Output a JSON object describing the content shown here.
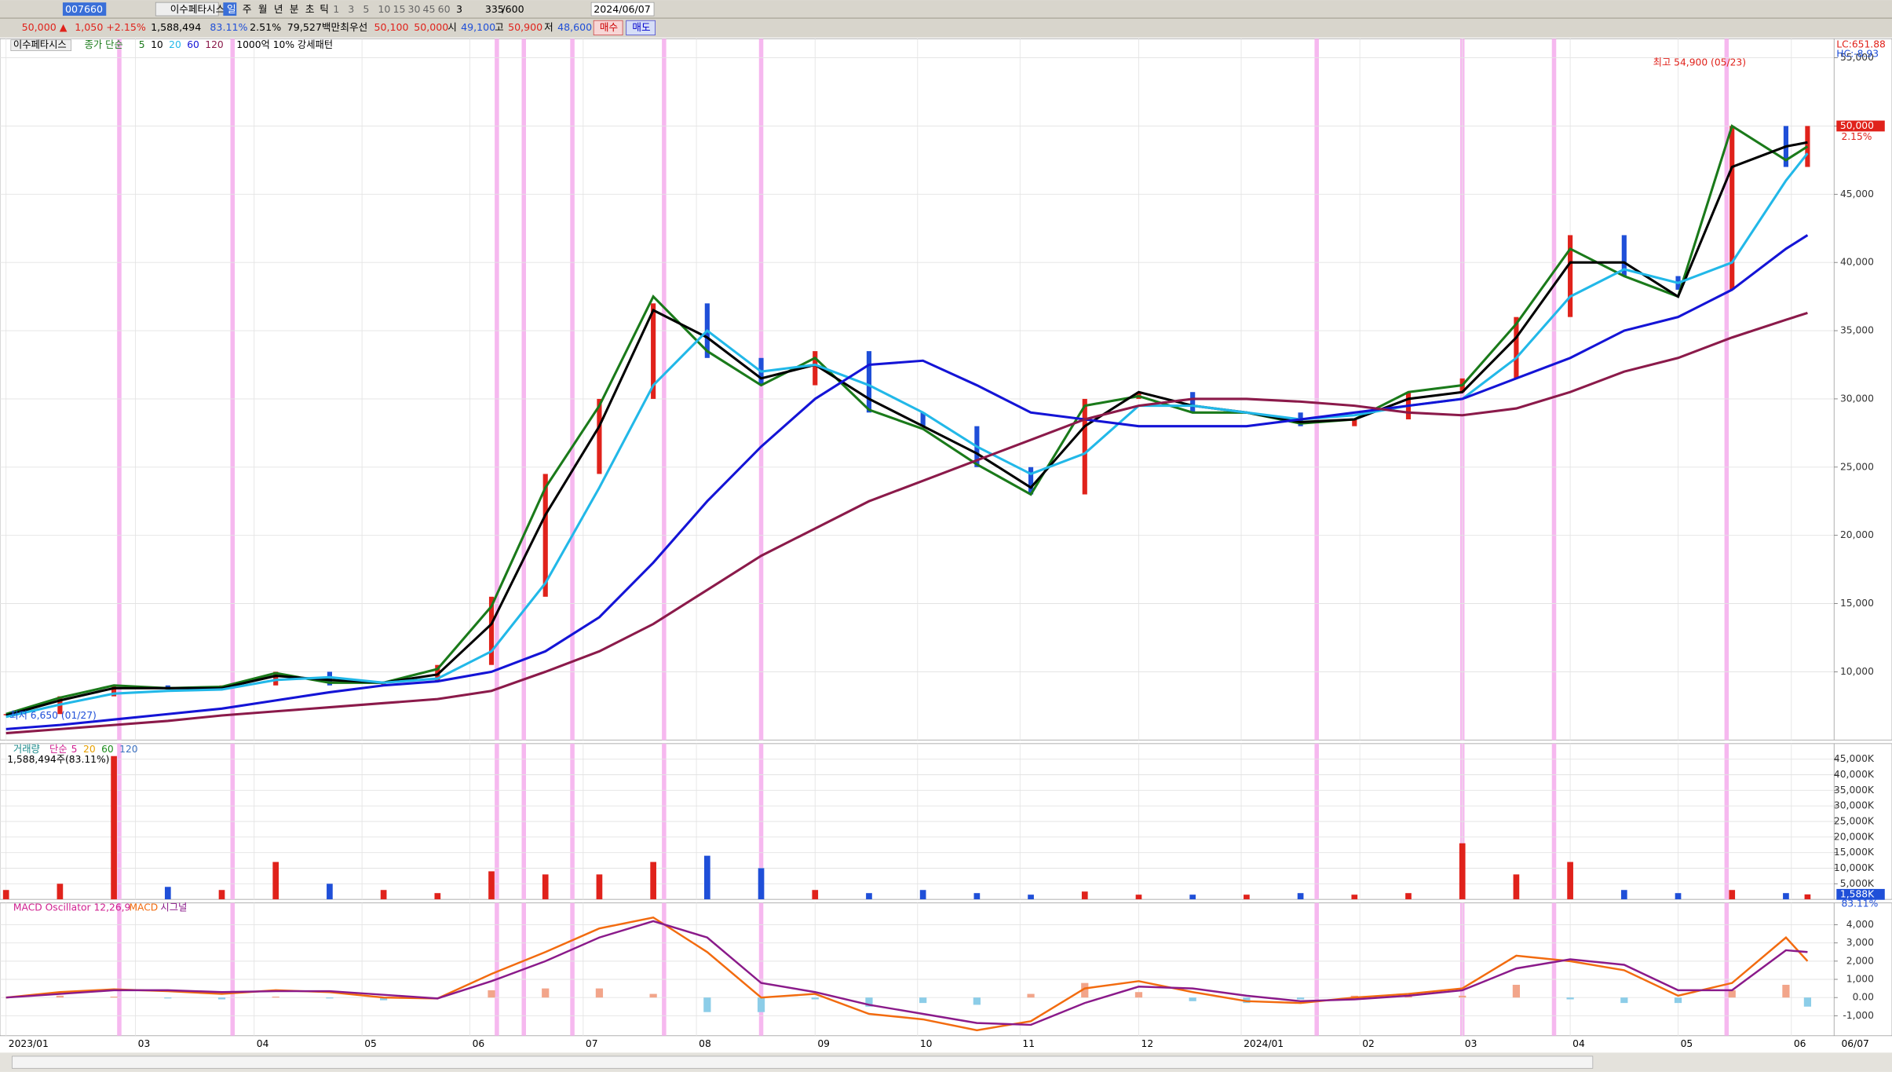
{
  "toolbar": {
    "code": "007660",
    "name": "이수페타시스",
    "periods": [
      "일",
      "주",
      "월",
      "년",
      "분",
      "초",
      "틱"
    ],
    "intervals": [
      "1",
      "3",
      "5",
      "10",
      "15",
      "30",
      "45",
      "60"
    ],
    "count": "3",
    "bars": "335",
    "max_bars": "/600",
    "date": "2024/06/07"
  },
  "quote": {
    "price": "50,000 ▲",
    "change": "1,050",
    "change_pct": "+2.15%",
    "volume": "1,588,494",
    "volume_ratio": "83.11%",
    "turnover": "2.51%",
    "amount": "79,527백만",
    "best_label": "최우선",
    "ask": "50,100",
    "bid": "50,000",
    "open_label": "시",
    "open": "49,100",
    "high_label": "고",
    "high": "50,900",
    "low_label": "저",
    "low": "48,600",
    "buy": "매수",
    "sell": "매도"
  },
  "chart_data": [
    {
      "type": "price",
      "title": "이수페타시스",
      "legend_prefix": "종가 단순",
      "pattern_label": "1000억 10% 강세패턴",
      "high_label": "최고 54,900 (05/23)",
      "low_label": "최저 6,650 (01/27)",
      "lc_label": "LC:651.88",
      "hc_label": "HC:-8.93",
      "last_label": "50,000",
      "last_pct": "2.15%",
      "end_date": "06/07",
      "x": [
        0,
        10,
        20,
        30,
        40,
        50,
        60,
        70,
        80,
        90,
        100,
        110,
        120,
        130,
        140,
        150,
        160,
        170,
        180,
        190,
        200,
        210,
        220,
        230,
        240,
        250,
        260,
        270,
        280,
        290,
        300,
        310,
        320,
        330,
        334
      ],
      "xlim": [
        0,
        334
      ],
      "xticks": [
        {
          "value": 0,
          "label": "2023/01"
        },
        {
          "value": 24,
          "label": "03"
        },
        {
          "value": 46,
          "label": "04"
        },
        {
          "value": 66,
          "label": "05"
        },
        {
          "value": 86,
          "label": "06"
        },
        {
          "value": 107,
          "label": "07"
        },
        {
          "value": 128,
          "label": "08"
        },
        {
          "value": 150,
          "label": "09"
        },
        {
          "value": 169,
          "label": "10"
        },
        {
          "value": 188,
          "label": "11"
        },
        {
          "value": 210,
          "label": "12"
        },
        {
          "value": 229,
          "label": "2024/01"
        },
        {
          "value": 251,
          "label": "02"
        },
        {
          "value": 270,
          "label": "03"
        },
        {
          "value": 290,
          "label": "04"
        },
        {
          "value": 310,
          "label": "05"
        },
        {
          "value": 331,
          "label": "06"
        }
      ],
      "highlights": [
        21,
        42,
        91,
        96,
        105,
        122,
        140,
        243,
        270,
        287,
        319
      ],
      "up_color": "#e0221b",
      "down_color": "#1f4fd8",
      "values": [
        6900,
        8200,
        9000,
        8700,
        9000,
        10000,
        9000,
        9300,
        10500,
        15500,
        24500,
        30000,
        37000,
        33000,
        31000,
        33500,
        29000,
        28000,
        25000,
        23000,
        30000,
        30500,
        29000,
        29000,
        28000,
        28500,
        30500,
        31500,
        36000,
        42000,
        39000,
        38000,
        50000,
        47000,
        50000
      ],
      "series": [
        {
          "name": "5",
          "color": "#1a7a1a",
          "values": [
            6900,
            8100,
            9000,
            8800,
            8900,
            9900,
            9200,
            9200,
            10200,
            14800,
            23500,
            29500,
            37500,
            33500,
            31000,
            33000,
            29200,
            27800,
            25200,
            23000,
            29500,
            30200,
            29000,
            29000,
            28200,
            28500,
            30500,
            31000,
            35500,
            41000,
            39000,
            37500,
            50000,
            47500,
            48500
          ]
        },
        {
          "name": "10",
          "color": "#000000",
          "values": [
            6800,
            7900,
            8800,
            8800,
            8800,
            9700,
            9400,
            9200,
            9800,
            13500,
            21500,
            28000,
            36500,
            34500,
            31500,
            32500,
            30000,
            28000,
            26000,
            23500,
            28000,
            30500,
            29500,
            29000,
            28300,
            28500,
            30000,
            30500,
            34500,
            40000,
            40000,
            37500,
            47000,
            48500,
            48800
          ]
        },
        {
          "name": "20",
          "color": "#22b8e8",
          "values": [
            6700,
            7600,
            8400,
            8600,
            8700,
            9400,
            9600,
            9200,
            9500,
            11500,
            16500,
            23500,
            31000,
            35000,
            32000,
            32500,
            31000,
            29000,
            26500,
            24500,
            26000,
            29500,
            29500,
            29000,
            28500,
            28800,
            29500,
            30000,
            33000,
            37500,
            39500,
            38500,
            40000,
            46000,
            48000
          ]
        },
        {
          "name": "60",
          "color": "#1414d6",
          "values": [
            5800,
            6100,
            6500,
            6900,
            7300,
            7900,
            8500,
            9000,
            9300,
            10000,
            11500,
            14000,
            18000,
            22500,
            26500,
            30000,
            32500,
            32800,
            31000,
            29000,
            28500,
            28000,
            28000,
            28000,
            28500,
            29000,
            29500,
            30000,
            31500,
            33000,
            35000,
            36000,
            38000,
            41000,
            42000
          ]
        },
        {
          "name": "120",
          "color": "#8b1a4a",
          "values": [
            5500,
            5800,
            6100,
            6400,
            6800,
            7100,
            7400,
            7700,
            8000,
            8600,
            10000,
            11500,
            13500,
            16000,
            18500,
            20500,
            22500,
            24000,
            25500,
            27000,
            28500,
            29500,
            30000,
            30000,
            29800,
            29500,
            29000,
            28800,
            29300,
            30500,
            32000,
            33000,
            34500,
            35800,
            36300
          ]
        }
      ],
      "ylim": [
        5000,
        56400
      ],
      "yticks": [
        {
          "value": 10000,
          "label": "10,000"
        },
        {
          "value": 15000,
          "label": "15,000"
        },
        {
          "value": 20000,
          "label": "20,000"
        },
        {
          "value": 25000,
          "label": "25,000"
        },
        {
          "value": 30000,
          "label": "30,000"
        },
        {
          "value": 35000,
          "label": "35,000"
        },
        {
          "value": 40000,
          "label": "40,000"
        },
        {
          "value": 45000,
          "label": "45,000"
        },
        {
          "value": 50000,
          "label": "50,000"
        },
        {
          "value": 55000,
          "label": "55,000"
        }
      ],
      "grid": true
    },
    {
      "type": "bar",
      "title": "거래량",
      "legend_prefix": "단순",
      "legend": [
        {
          "name": "5",
          "color": "#d02090"
        },
        {
          "name": "20",
          "color": "#e8a000"
        },
        {
          "name": "60",
          "color": "#1a8a1a"
        },
        {
          "name": "120",
          "color": "#3a70c0"
        }
      ],
      "info": "1,588,494주(83.11%)",
      "last_label": "1,588K",
      "last_pct": "83.11%",
      "values": [
        3000,
        5000,
        46000,
        4000,
        3000,
        12000,
        5000,
        3000,
        2000,
        9000,
        8000,
        8000,
        12000,
        14000,
        10000,
        3000,
        2000,
        3000,
        2000,
        1500,
        2500,
        1500,
        1500,
        1500,
        2000,
        1500,
        2000,
        18000,
        8000,
        12000,
        3000,
        2000,
        3000,
        2000,
        1588
      ],
      "ylim": [
        0,
        50000
      ],
      "yticks": [
        {
          "value": 5000,
          "label": "5,000K"
        },
        {
          "value": 10000,
          "label": "10,000K"
        },
        {
          "value": 15000,
          "label": "15,000K"
        },
        {
          "value": 20000,
          "label": "20,000K"
        },
        {
          "value": 25000,
          "label": "25,000K"
        },
        {
          "value": 30000,
          "label": "30,000K"
        },
        {
          "value": 35000,
          "label": "35,000K"
        },
        {
          "value": 40000,
          "label": "40,000K"
        },
        {
          "value": 45000,
          "label": "45,000K"
        }
      ]
    },
    {
      "type": "macd",
      "title": "MACD Oscillator 12,26,9",
      "osc_up": "#f2a58a",
      "osc_down": "#8ccde8",
      "oscillator": [
        0,
        100,
        50,
        -50,
        -100,
        50,
        -50,
        -150,
        0,
        400,
        500,
        500,
        200,
        -800,
        -800,
        -100,
        -500,
        -300,
        -400,
        200,
        800,
        300,
        -200,
        -300,
        -100,
        100,
        100,
        100,
        700,
        -100,
        -300,
        -300,
        400,
        700,
        -500
      ],
      "series": [
        {
          "name": "MACD",
          "color": "#f26b0f",
          "values": [
            0,
            300,
            450,
            350,
            200,
            400,
            300,
            0,
            -50,
            1300,
            2500,
            3800,
            4400,
            2500,
            0,
            200,
            -900,
            -1200,
            -1800,
            -1300,
            500,
            900,
            300,
            -200,
            -300,
            0,
            200,
            500,
            2300,
            2000,
            1500,
            100,
            800,
            3300,
            2000
          ]
        },
        {
          "name": "시그널",
          "color": "#8a1a8a",
          "values": [
            0,
            200,
            400,
            400,
            300,
            350,
            350,
            150,
            -50,
            900,
            2000,
            3300,
            4200,
            3300,
            800,
            300,
            -400,
            -900,
            -1400,
            -1500,
            -300,
            600,
            500,
            100,
            -200,
            -100,
            100,
            400,
            1600,
            2100,
            1800,
            400,
            400,
            2600,
            2500
          ]
        }
      ],
      "ylim": [
        -2100,
        5200
      ],
      "yticks": [
        {
          "value": -1000,
          "label": "-1,000"
        },
        {
          "value": 0,
          "label": "0.00"
        },
        {
          "value": 1000,
          "label": "1,000"
        },
        {
          "value": 2000,
          "label": "2,000"
        },
        {
          "value": 3000,
          "label": "3,000"
        },
        {
          "value": 4000,
          "label": "4,000"
        }
      ]
    }
  ]
}
